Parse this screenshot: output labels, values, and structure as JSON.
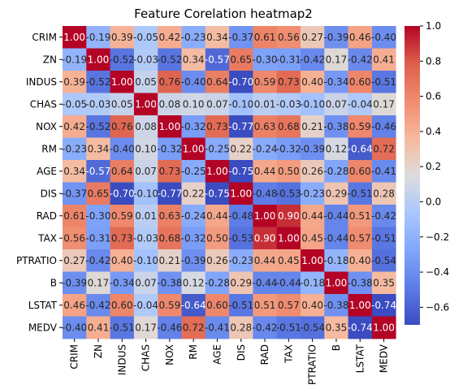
{
  "chart_data": {
    "type": "heatmap",
    "title": "Feature Corelation heatmap2",
    "xlabel": "",
    "ylabel": "",
    "colormap": "coolwarm",
    "vmin": -0.7,
    "vmax": 1.0,
    "colorbar_ticks": [
      1.0,
      0.8,
      0.6,
      0.4,
      0.2,
      0.0,
      -0.2,
      -0.4,
      -0.6
    ],
    "colorbar_tick_labels": [
      "1.0",
      "0.8",
      "0.6",
      "0.4",
      "0.2",
      "0.0",
      "−0.2",
      "−0.4",
      "−0.6"
    ],
    "rows": [
      "CRIM",
      "ZN",
      "INDUS",
      "CHAS",
      "NOX",
      "RM",
      "AGE",
      "DIS",
      "RAD",
      "TAX",
      "PTRATIO",
      "B",
      "LSTAT",
      "MEDV"
    ],
    "cols": [
      "CRIM",
      "ZN",
      "INDUS",
      "CHAS",
      "NOX",
      "RM",
      "AGE",
      "DIS",
      "RAD",
      "TAX",
      "PTRATIO",
      "B",
      "LSTAT",
      "MEDV"
    ],
    "values": [
      [
        1.0,
        -0.19,
        0.39,
        -0.05,
        0.42,
        -0.23,
        0.34,
        -0.37,
        0.61,
        0.56,
        0.27,
        -0.39,
        0.46,
        -0.4
      ],
      [
        -0.19,
        1.0,
        -0.52,
        -0.03,
        -0.52,
        0.34,
        -0.57,
        0.65,
        -0.3,
        -0.31,
        -0.42,
        0.17,
        -0.42,
        0.41
      ],
      [
        0.39,
        -0.52,
        1.0,
        0.05,
        0.76,
        -0.4,
        0.64,
        -0.7,
        0.59,
        0.73,
        0.4,
        -0.34,
        0.6,
        -0.51
      ],
      [
        -0.05,
        -0.03,
        0.05,
        1.0,
        0.08,
        0.1,
        0.07,
        -0.1,
        0.01,
        -0.03,
        -0.1,
        0.07,
        -0.04,
        0.17
      ],
      [
        0.42,
        -0.52,
        0.76,
        0.08,
        1.0,
        -0.32,
        0.73,
        -0.77,
        0.63,
        0.68,
        0.21,
        -0.38,
        0.59,
        -0.46
      ],
      [
        -0.23,
        0.34,
        -0.4,
        0.1,
        -0.32,
        1.0,
        -0.25,
        0.22,
        -0.24,
        -0.32,
        -0.39,
        0.12,
        -0.64,
        0.72
      ],
      [
        0.34,
        -0.57,
        0.64,
        0.07,
        0.73,
        -0.25,
        1.0,
        -0.75,
        0.44,
        0.5,
        0.26,
        -0.28,
        0.6,
        -0.41
      ],
      [
        -0.37,
        0.65,
        -0.7,
        -0.1,
        -0.77,
        0.22,
        -0.75,
        1.0,
        -0.48,
        -0.53,
        -0.23,
        0.29,
        -0.51,
        0.28
      ],
      [
        0.61,
        -0.3,
        0.59,
        0.01,
        0.63,
        -0.24,
        0.44,
        -0.48,
        1.0,
        0.9,
        0.44,
        -0.44,
        0.51,
        -0.42
      ],
      [
        0.56,
        -0.31,
        0.73,
        -0.03,
        0.68,
        -0.32,
        0.5,
        -0.53,
        0.9,
        1.0,
        0.45,
        -0.44,
        0.57,
        -0.51
      ],
      [
        0.27,
        -0.42,
        0.4,
        -0.1,
        0.21,
        -0.39,
        0.26,
        -0.23,
        0.44,
        0.45,
        1.0,
        -0.18,
        0.4,
        -0.54
      ],
      [
        -0.39,
        0.17,
        -0.34,
        0.07,
        -0.38,
        0.12,
        -0.28,
        0.29,
        -0.44,
        -0.44,
        -0.18,
        1.0,
        -0.38,
        0.35
      ],
      [
        0.46,
        -0.42,
        0.6,
        -0.04,
        0.59,
        -0.64,
        0.6,
        -0.51,
        0.51,
        0.57,
        0.4,
        -0.38,
        1.0,
        -0.74
      ],
      [
        -0.4,
        0.41,
        -0.51,
        0.17,
        -0.46,
        0.72,
        -0.41,
        0.28,
        -0.42,
        -0.51,
        -0.54,
        0.35,
        -0.74,
        1.0
      ]
    ]
  }
}
